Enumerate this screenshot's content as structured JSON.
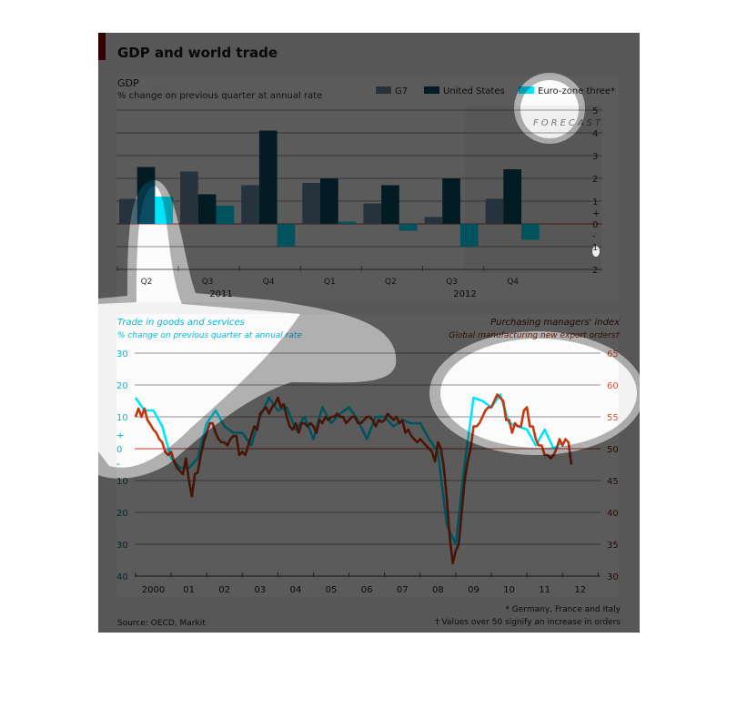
{
  "title": "GDP and world trade",
  "colors": {
    "accent_red": "#8b0000",
    "g7": "#6a8fa6",
    "us": "#0a4c63",
    "euro": "#00e5ff",
    "trade": "#00e5ff",
    "pmi": "#c4380f",
    "zero_line": "#c0392b"
  },
  "footnotes": {
    "star": "* Germany, France and Italy",
    "dagger": "† Values over 50 signify an increase in orders",
    "source": "Source: OECD, Markit"
  },
  "chart_data": [
    {
      "type": "bar",
      "title": "GDP",
      "subtitle": "% change on previous quarter at annual rate",
      "categories": [
        "Q2",
        "Q3",
        "Q4",
        "Q1",
        "Q2",
        "Q3",
        "Q4"
      ],
      "year_labels": [
        "2011",
        "2012"
      ],
      "annotation": "FORECAST",
      "forecast_from_category_index": 5,
      "series": [
        {
          "name": "G7",
          "values": [
            1.1,
            2.3,
            1.7,
            1.8,
            0.9,
            0.3,
            1.1
          ]
        },
        {
          "name": "United States",
          "values": [
            2.5,
            1.3,
            4.1,
            2.0,
            1.7,
            2.0,
            2.4
          ]
        },
        {
          "name": "Euro-zone three*",
          "values": [
            1.2,
            0.8,
            -1.0,
            0.1,
            -0.3,
            -1.0,
            -0.7
          ]
        }
      ],
      "ylim": [
        -2,
        5
      ],
      "yticks": [
        "5",
        "4",
        "3",
        "2",
        "1",
        "+",
        "0",
        "-",
        "1",
        "2"
      ],
      "grid": true,
      "legend": "top-right"
    },
    {
      "type": "line",
      "left_title": "Trade in goods and services",
      "left_subtitle": "% change on previous quarter at annual rate",
      "right_title": "Purchasing managers' index",
      "right_subtitle": "Global manufacturing new export orders†",
      "x_ticks": [
        "2000",
        "01",
        "02",
        "03",
        "04",
        "05",
        "06",
        "07",
        "08",
        "09",
        "10",
        "11",
        "12"
      ],
      "left_ylim": [
        -40,
        30
      ],
      "left_ticks": [
        "30",
        "20",
        "10",
        "+",
        "0",
        "-",
        "10",
        "20",
        "30",
        "40"
      ],
      "right_ylim": [
        30,
        65
      ],
      "right_ticks": [
        "65",
        "60",
        "55",
        "50",
        "45",
        "40",
        "35",
        "30"
      ],
      "grid": true,
      "trade_quarterly_from": "2000 Q1",
      "trade": [
        16,
        12,
        12,
        7,
        -3,
        -6,
        -6,
        -3,
        8,
        12,
        7,
        5,
        5,
        1,
        10,
        16,
        12,
        13,
        6,
        10,
        3,
        13,
        8,
        11,
        13,
        9,
        3,
        10,
        10,
        7,
        9,
        8,
        8,
        3,
        -1,
        -24,
        -30,
        -5,
        16,
        15,
        13,
        17,
        8,
        7,
        6,
        1,
        6,
        0,
        2
      ],
      "pmi_monthly_from": "2000 Jan",
      "pmi": [
        55,
        56.3,
        55,
        56.3,
        54.5,
        53.8,
        53,
        52.5,
        51.5,
        51,
        49.5,
        49,
        49.5,
        48,
        47,
        46.5,
        46,
        48.5,
        45,
        42.5,
        46,
        46.3,
        49,
        51,
        52.5,
        54,
        54,
        52.5,
        51.5,
        51,
        51,
        50.5,
        51.5,
        52,
        52,
        49,
        49.5,
        49,
        50.5,
        52,
        53.5,
        53,
        55.5,
        56,
        56.5,
        55.5,
        56.5,
        57,
        58,
        56.5,
        57,
        55,
        53.5,
        53,
        54,
        52.5,
        54,
        54,
        53.5,
        54,
        53.5,
        52.5,
        54.5,
        54,
        55,
        54.5,
        55,
        55,
        55.5,
        55,
        55,
        54,
        54.5,
        55,
        55,
        54,
        54,
        54.5,
        55,
        55,
        54.5,
        53.5,
        54.5,
        54.2,
        54.5,
        55.5,
        55,
        54.5,
        55,
        54,
        54.5,
        52.5,
        53,
        52,
        51.5,
        51,
        51.5,
        51,
        50.5,
        50,
        49.5,
        48,
        51,
        50,
        47,
        42,
        36,
        32,
        34,
        35,
        40,
        45,
        48,
        50,
        53.5,
        53.5,
        54,
        55,
        56,
        56.5,
        56.5,
        57.5,
        58.5,
        58,
        57.5,
        54.5,
        54.5,
        52.5,
        54,
        53.5,
        53.5,
        56,
        56.5,
        53.5,
        53.5,
        51.5,
        50.5,
        50.5,
        49,
        49,
        48.5,
        49,
        50,
        51.5,
        50.5,
        51.5,
        51,
        47.5
      ]
    }
  ]
}
